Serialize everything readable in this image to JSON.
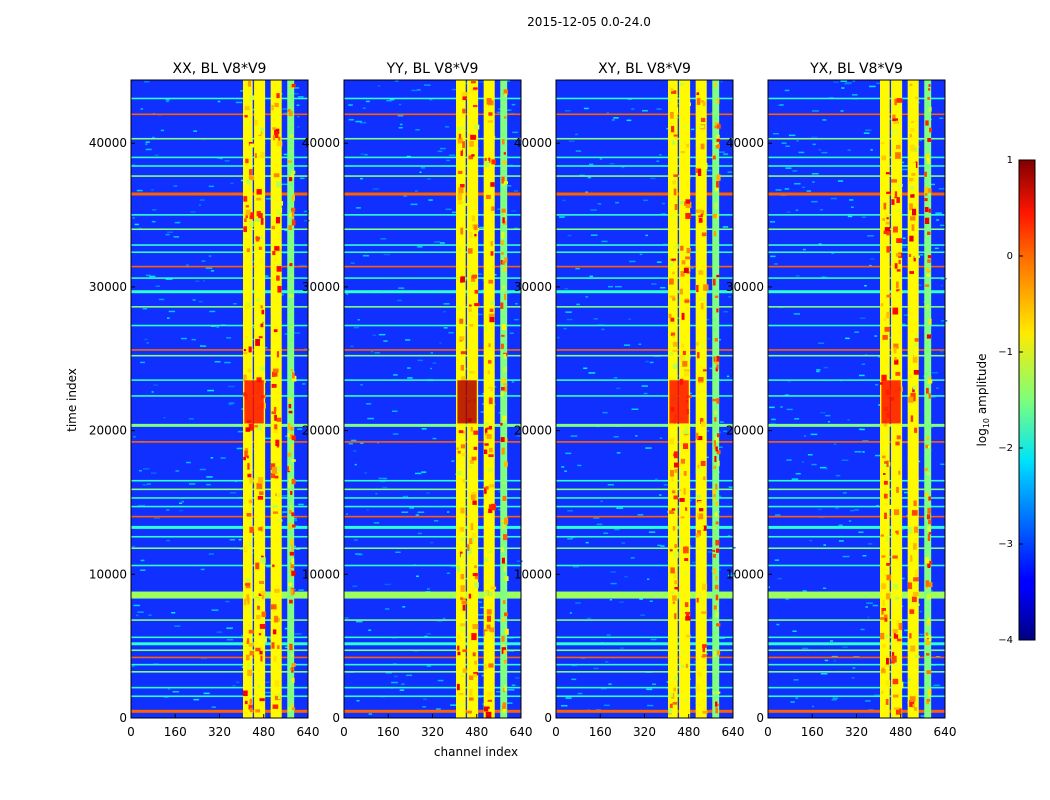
{
  "figure": {
    "suptitle": "2015-12-05 0.0-24.0"
  },
  "chart_data": {
    "type": "heatmap",
    "title": "2015-12-05 0.0-24.0",
    "xlabel": "channel index",
    "ylabel": "time index",
    "xlim": [
      0,
      640
    ],
    "ylim": [
      0,
      44400
    ],
    "x_ticks": [
      "0",
      "160",
      "320",
      "480",
      "640"
    ],
    "y_ticks": [
      "0",
      "10000",
      "20000",
      "30000",
      "40000"
    ],
    "panels": [
      {
        "title": "XX, BL V8*V9",
        "pol": "XX"
      },
      {
        "title": "YY, BL V8*V9",
        "pol": "YY"
      },
      {
        "title": "XY, BL V8*V9",
        "pol": "XY"
      },
      {
        "title": "YX, BL V8*V9",
        "pol": "YX"
      }
    ],
    "colorbar": {
      "label_main": "log",
      "label_sub": "10",
      "label_tail": " amplitude",
      "range": [
        -4,
        1
      ],
      "ticks": [
        "1",
        "0",
        "−1",
        "−2",
        "−3",
        "−4"
      ],
      "colormap": "jet"
    },
    "bright_channel_bands": [
      {
        "from": 405,
        "to": 440
      },
      {
        "from": 445,
        "to": 485
      },
      {
        "from": 505,
        "to": 545
      },
      {
        "from": 565,
        "to": 590
      }
    ],
    "rfi_time_rows": [
      500,
      1500,
      2100,
      3200,
      3700,
      4200,
      4700,
      5200,
      5600,
      6800,
      8500,
      10600,
      11800,
      12600,
      13300,
      14000,
      14700,
      15300,
      15900,
      16500,
      19200,
      20400,
      22400,
      23500,
      25200,
      25600,
      27300,
      28600,
      29700,
      30600,
      31400,
      32400,
      32900,
      34000,
      35000,
      36500,
      37700,
      38400,
      39000,
      40300,
      42000,
      43100
    ]
  }
}
